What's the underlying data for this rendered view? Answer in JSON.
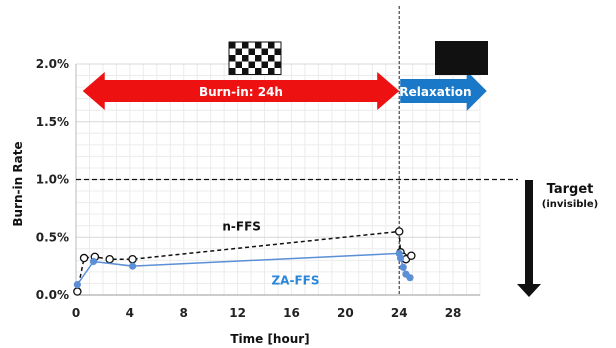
{
  "chart_data": {
    "type": "line",
    "xlabel": "Time [hour]",
    "ylabel": "Burn-in Rate",
    "xlim": [
      0,
      30
    ],
    "ylim": [
      0,
      0.02
    ],
    "x_ticks": [
      "0",
      "4",
      "8",
      "12",
      "16",
      "20",
      "24",
      "28"
    ],
    "y_ticks": [
      "0.0%",
      "0.5%",
      "1.0%",
      "1.5%",
      "2.0%"
    ],
    "grid": true,
    "series": [
      {
        "name": "n-FFS",
        "color": "#111111",
        "line_style": "dashed",
        "marker": "open-circle",
        "x": [
          0.1,
          0.6,
          1.4,
          2.5,
          4.2,
          24.0,
          24.1,
          24.3,
          24.5,
          24.9
        ],
        "y": [
          0.0003,
          0.0032,
          0.0033,
          0.0031,
          0.0031,
          0.0055,
          0.0037,
          0.0033,
          0.0031,
          0.0034
        ]
      },
      {
        "name": "ZA-FFS",
        "color": "#5b8fd6",
        "line_style": "solid",
        "marker": "filled-circle",
        "x": [
          0.1,
          1.3,
          4.2,
          24.0,
          24.1,
          24.3,
          24.5,
          24.8
        ],
        "y": [
          0.0009,
          0.0029,
          0.0025,
          0.0036,
          0.0032,
          0.0024,
          0.0018,
          0.0015
        ]
      }
    ],
    "target": {
      "value": 0.01,
      "label": "Target",
      "sublabel": "(invisible)"
    },
    "annotations": {
      "burnin_arrow": {
        "label": "Burn-in: 24h",
        "from": 0.5,
        "to": 24.0,
        "color": "#ee1111"
      },
      "relax_arrow": {
        "label": "Relaxation",
        "from": 24.0,
        "to": 30.5,
        "color": "#1a78c8"
      },
      "vline_x": 24.0
    }
  }
}
